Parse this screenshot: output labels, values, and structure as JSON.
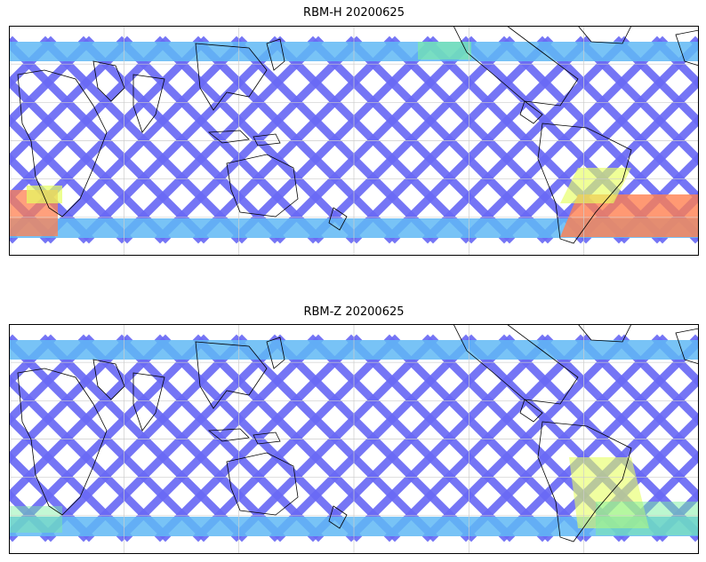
{
  "panels": [
    {
      "title": "RBM-H 20200625"
    },
    {
      "title": "RBM-Z 20200625"
    }
  ],
  "colors": {
    "low": "#6a6af5",
    "mid_low": "#60b8f5",
    "mid": "#7af0a0",
    "mid_high": "#e6ff60",
    "high": "#ff8050",
    "coast": "#000000",
    "grid": "#cccccc"
  }
}
